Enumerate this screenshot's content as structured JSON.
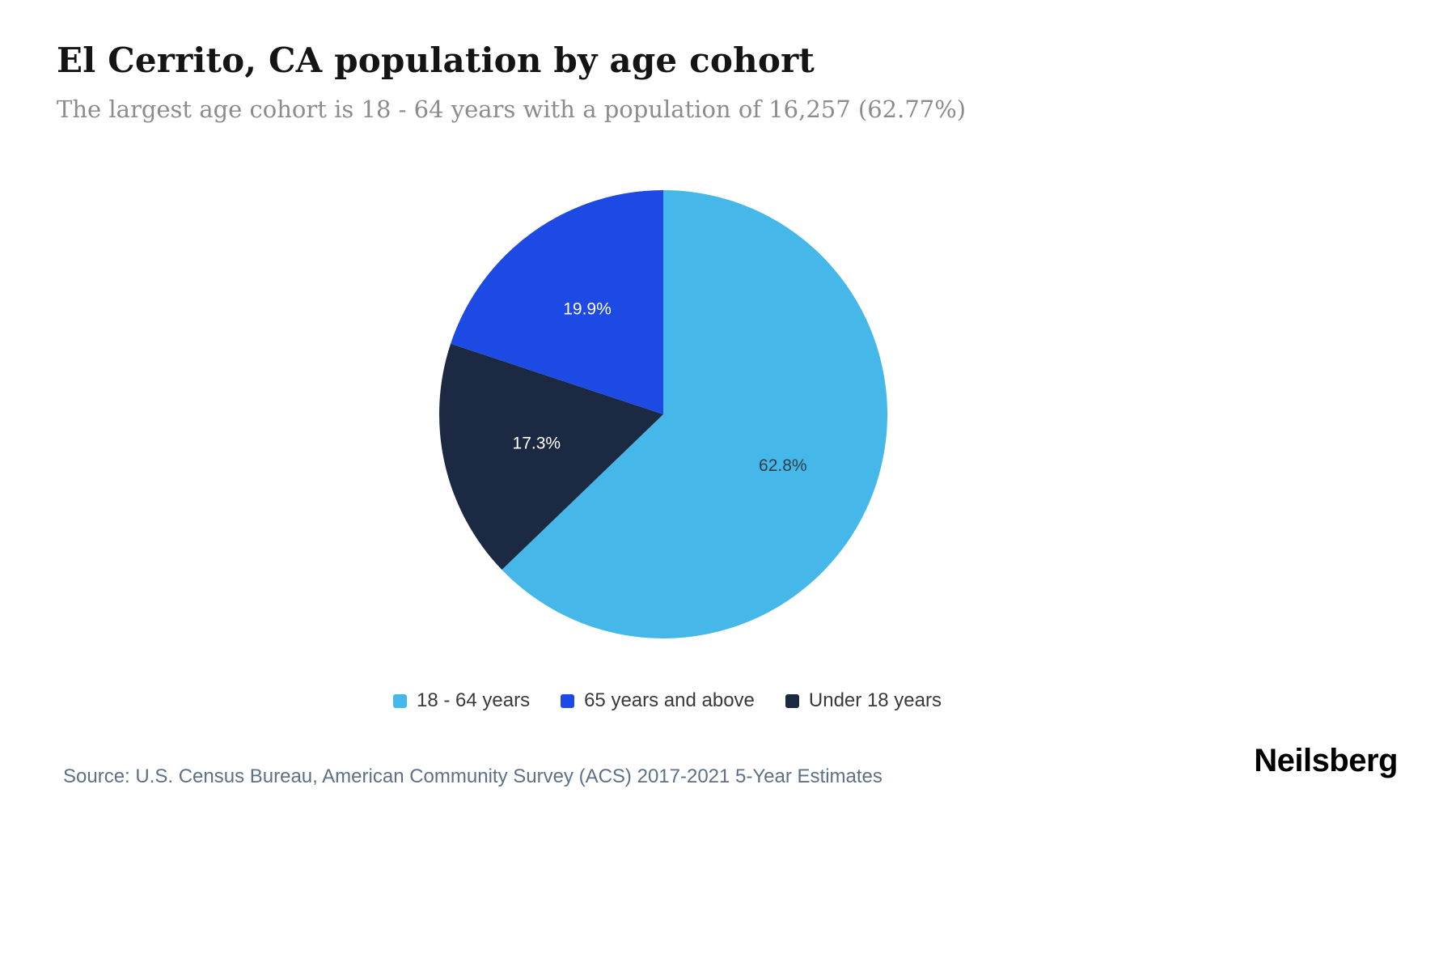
{
  "header": {
    "title": "El Cerrito, CA population by age cohort",
    "subtitle": "The largest age cohort is 18 - 64 years with a population of 16,257 (62.77%)"
  },
  "chart_data": {
    "type": "pie",
    "title": "El Cerrito, CA population by age cohort",
    "start_angle_deg": 0,
    "direction": "clockwise",
    "legend_position": "bottom",
    "slices": [
      {
        "label": "18 - 64 years",
        "value": 62.8,
        "display": "62.8%",
        "color": "#45B7E8",
        "label_color": "#2F3E4D"
      },
      {
        "label": "Under 18 years",
        "value": 17.3,
        "display": "17.3%",
        "color": "#1B2A42",
        "label_color": "#FFFFFF"
      },
      {
        "label": "65 years and above",
        "value": 19.9,
        "display": "19.9%",
        "color": "#1D49E5",
        "label_color": "#FFFFFF"
      }
    ],
    "legend": [
      {
        "label": "18 - 64 years",
        "color": "#45B7E8"
      },
      {
        "label": "65 years and above",
        "color": "#1D49E5"
      },
      {
        "label": "Under 18 years",
        "color": "#1B2A42"
      }
    ]
  },
  "footer": {
    "source": "Source: U.S. Census Bureau, American Community Survey (ACS) 2017-2021 5-Year Estimates",
    "brand": "Neilsberg"
  }
}
